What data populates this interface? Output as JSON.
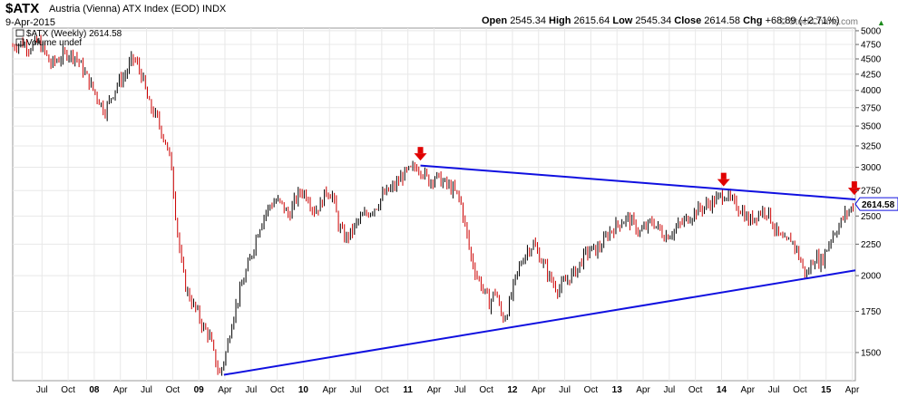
{
  "header": {
    "symbol": "$ATX",
    "name": "Austria (Vienna) ATX Index (EOD)",
    "exchange": "INDX",
    "date": "9-Apr-2015",
    "copyright": "© StockCharts.com",
    "open_label": "Open",
    "open": "2545.34",
    "high_label": "High",
    "high": "2615.64",
    "low_label": "Low",
    "low": "2545.34",
    "close_label": "Close",
    "close": "2614.58",
    "chg_label": "Chg",
    "chg": "+68.89 (+2.71%)",
    "chg_arrow": "▲"
  },
  "legend": {
    "price": "$ATX (Weekly) 2614.58",
    "volume": "Volume undef"
  },
  "colors": {
    "up": "#000000",
    "down": "#cc0000",
    "trendline": "#1010e0",
    "marker": "#e00000",
    "grid": "#e8e8e8",
    "last_price_label_bg": "#1010e0"
  },
  "chart_data": {
    "type": "candlestick",
    "interval": "weekly",
    "scale": "log",
    "ylim": [
      1350,
      5050
    ],
    "y_ticks": [
      1500,
      1750,
      2000,
      2250,
      2500,
      2750,
      3000,
      3250,
      3500,
      3750,
      4000,
      4250,
      4500,
      4750,
      5000
    ],
    "x_ticks": [
      "Jul",
      "Oct",
      "08",
      "Apr",
      "Jul",
      "Oct",
      "09",
      "Apr",
      "Jul",
      "Oct",
      "10",
      "Apr",
      "Jul",
      "Oct",
      "11",
      "Apr",
      "Jul",
      "Oct",
      "12",
      "Apr",
      "Jul",
      "Oct",
      "13",
      "Apr",
      "Jul",
      "Oct",
      "14",
      "Apr",
      "Jul",
      "Oct",
      "15",
      "Apr"
    ],
    "x_tick_dates": [
      2007.5,
      2007.75,
      2008.0,
      2008.25,
      2008.5,
      2008.75,
      2009.0,
      2009.25,
      2009.5,
      2009.75,
      2010.0,
      2010.25,
      2010.5,
      2010.75,
      2011.0,
      2011.25,
      2011.5,
      2011.75,
      2012.0,
      2012.25,
      2012.5,
      2012.75,
      2013.0,
      2013.25,
      2013.5,
      2013.75,
      2014.0,
      2014.25,
      2014.5,
      2014.75,
      2015.0,
      2015.25
    ],
    "xlim": [
      2007.22,
      2015.28
    ],
    "close_path": [
      [
        2007.22,
        4720
      ],
      [
        2007.3,
        4780
      ],
      [
        2007.38,
        4700
      ],
      [
        2007.46,
        4800
      ],
      [
        2007.52,
        4650
      ],
      [
        2007.58,
        4400
      ],
      [
        2007.66,
        4500
      ],
      [
        2007.74,
        4600
      ],
      [
        2007.82,
        4550
      ],
      [
        2007.9,
        4300
      ],
      [
        2007.96,
        4100
      ],
      [
        2008.03,
        3900
      ],
      [
        2008.1,
        3700
      ],
      [
        2008.16,
        3900
      ],
      [
        2008.22,
        4100
      ],
      [
        2008.3,
        4250
      ],
      [
        2008.36,
        4500
      ],
      [
        2008.4,
        4450
      ],
      [
        2008.46,
        4200
      ],
      [
        2008.52,
        3800
      ],
      [
        2008.6,
        3600
      ],
      [
        2008.68,
        3300
      ],
      [
        2008.74,
        3000
      ],
      [
        2008.78,
        2500
      ],
      [
        2008.83,
        2100
      ],
      [
        2008.88,
        1900
      ],
      [
        2008.94,
        1800
      ],
      [
        2008.98,
        1750
      ],
      [
        2009.04,
        1650
      ],
      [
        2009.1,
        1600
      ],
      [
        2009.16,
        1450
      ],
      [
        2009.2,
        1380
      ],
      [
        2009.26,
        1500
      ],
      [
        2009.32,
        1700
      ],
      [
        2009.38,
        1850
      ],
      [
        2009.44,
        2000
      ],
      [
        2009.5,
        2150
      ],
      [
        2009.56,
        2350
      ],
      [
        2009.62,
        2500
      ],
      [
        2009.68,
        2600
      ],
      [
        2009.74,
        2650
      ],
      [
        2009.8,
        2600
      ],
      [
        2009.86,
        2500
      ],
      [
        2009.92,
        2650
      ],
      [
        2009.98,
        2750
      ],
      [
        2010.04,
        2700
      ],
      [
        2010.1,
        2550
      ],
      [
        2010.16,
        2600
      ],
      [
        2010.22,
        2750
      ],
      [
        2010.28,
        2700
      ],
      [
        2010.34,
        2400
      ],
      [
        2010.4,
        2300
      ],
      [
        2010.46,
        2350
      ],
      [
        2010.52,
        2450
      ],
      [
        2010.58,
        2500
      ],
      [
        2010.64,
        2550
      ],
      [
        2010.7,
        2600
      ],
      [
        2010.76,
        2700
      ],
      [
        2010.82,
        2750
      ],
      [
        2010.88,
        2800
      ],
      [
        2010.94,
        2900
      ],
      [
        2011.0,
        2950
      ],
      [
        2011.05,
        2980
      ],
      [
        2011.09,
        3020
      ],
      [
        2011.14,
        2950
      ],
      [
        2011.2,
        2850
      ],
      [
        2011.26,
        2900
      ],
      [
        2011.32,
        2850
      ],
      [
        2011.38,
        2800
      ],
      [
        2011.44,
        2750
      ],
      [
        2011.5,
        2650
      ],
      [
        2011.55,
        2400
      ],
      [
        2011.6,
        2150
      ],
      [
        2011.66,
        2000
      ],
      [
        2011.72,
        1900
      ],
      [
        2011.78,
        1800
      ],
      [
        2011.84,
        1900
      ],
      [
        2011.88,
        1750
      ],
      [
        2011.92,
        1700
      ],
      [
        2011.97,
        1800
      ],
      [
        2012.02,
        1950
      ],
      [
        2012.08,
        2100
      ],
      [
        2012.14,
        2200
      ],
      [
        2012.2,
        2250
      ],
      [
        2012.26,
        2150
      ],
      [
        2012.32,
        2050
      ],
      [
        2012.38,
        1950
      ],
      [
        2012.44,
        1900
      ],
      [
        2012.5,
        1950
      ],
      [
        2012.56,
        2000
      ],
      [
        2012.62,
        2050
      ],
      [
        2012.68,
        2150
      ],
      [
        2012.74,
        2200
      ],
      [
        2012.8,
        2200
      ],
      [
        2012.86,
        2250
      ],
      [
        2012.92,
        2350
      ],
      [
        2012.98,
        2400
      ],
      [
        2013.04,
        2450
      ],
      [
        2013.1,
        2480
      ],
      [
        2013.16,
        2420
      ],
      [
        2013.22,
        2350
      ],
      [
        2013.28,
        2400
      ],
      [
        2013.34,
        2450
      ],
      [
        2013.4,
        2380
      ],
      [
        2013.46,
        2320
      ],
      [
        2013.52,
        2350
      ],
      [
        2013.58,
        2400
      ],
      [
        2013.64,
        2450
      ],
      [
        2013.7,
        2500
      ],
      [
        2013.76,
        2550
      ],
      [
        2013.82,
        2580
      ],
      [
        2013.88,
        2620
      ],
      [
        2013.94,
        2650
      ],
      [
        2014.0,
        2700
      ],
      [
        2014.04,
        2720
      ],
      [
        2014.08,
        2650
      ],
      [
        2014.14,
        2600
      ],
      [
        2014.2,
        2550
      ],
      [
        2014.26,
        2450
      ],
      [
        2014.32,
        2500
      ],
      [
        2014.38,
        2550
      ],
      [
        2014.44,
        2550
      ],
      [
        2014.5,
        2400
      ],
      [
        2014.56,
        2300
      ],
      [
        2014.62,
        2250
      ],
      [
        2014.66,
        2300
      ],
      [
        2014.72,
        2200
      ],
      [
        2014.78,
        2050
      ],
      [
        2014.82,
        2000
      ],
      [
        2014.86,
        2100
      ],
      [
        2014.9,
        2150
      ],
      [
        2014.94,
        2100
      ],
      [
        2014.98,
        2150
      ],
      [
        2015.02,
        2250
      ],
      [
        2015.07,
        2350
      ],
      [
        2015.12,
        2400
      ],
      [
        2015.17,
        2500
      ],
      [
        2015.22,
        2550
      ],
      [
        2015.27,
        2615
      ]
    ],
    "trendlines": [
      {
        "name": "upper",
        "from": [
          2011.12,
          3020
        ],
        "to": [
          2015.28,
          2660
        ]
      },
      {
        "name": "lower",
        "from": [
          2009.24,
          1380
        ],
        "to": [
          2015.28,
          2040
        ]
      }
    ],
    "markers": [
      {
        "x": 2011.12,
        "y": 3150
      },
      {
        "x": 2014.02,
        "y": 2860
      },
      {
        "x": 2015.27,
        "y": 2770
      }
    ],
    "last_price": 2614.58,
    "last_price_label": "2614.58"
  }
}
